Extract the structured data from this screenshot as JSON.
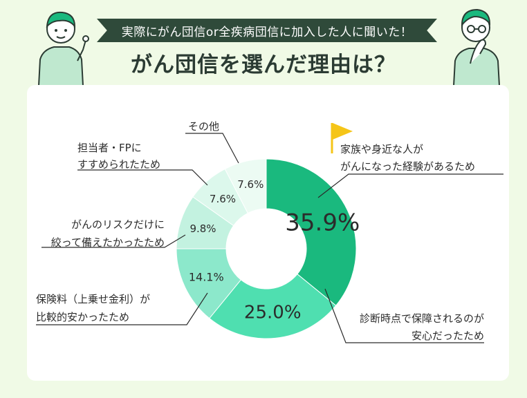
{
  "header": {
    "banner": "実際にがん団信or全疾病団信に加入した人に聞いた！",
    "title": "がん団信を選んだ理由は？"
  },
  "colors": {
    "background": "#f0fae6",
    "banner": "#2f4a3a",
    "card": "#ffffff",
    "accent_flag": "#f5c518"
  },
  "chart_data": {
    "type": "pie",
    "donut": true,
    "title": "がん団信を選んだ理由は？",
    "unit": "%",
    "slices": [
      {
        "label": [
          "家族や身近な人が",
          "がんになった経験があるため"
        ],
        "value": 35.9,
        "value_label": "35.9%",
        "color": "#1ab97e"
      },
      {
        "label": [
          "診断時点で保障されるのが",
          "安心だったため"
        ],
        "value": 25.0,
        "value_label": "25.0%",
        "color": "#4fdfb0"
      },
      {
        "label": [
          "保険料（上乗せ金利）が",
          "比較的安かったため"
        ],
        "value": 14.1,
        "value_label": "14.1%",
        "color": "#8ce8cb"
      },
      {
        "label": [
          "がんのリスクだけに",
          "絞って備えたかったため"
        ],
        "value": 9.8,
        "value_label": "9.8%",
        "color": "#c3f2e0"
      },
      {
        "label": [
          "担当者・FPに",
          "すすめられたため"
        ],
        "value": 7.6,
        "value_label": "7.6%",
        "color": "#dcf8ec"
      },
      {
        "label": [
          "その他"
        ],
        "value": 7.6,
        "value_label": "7.6%",
        "color": "#ecfbf3"
      }
    ]
  }
}
